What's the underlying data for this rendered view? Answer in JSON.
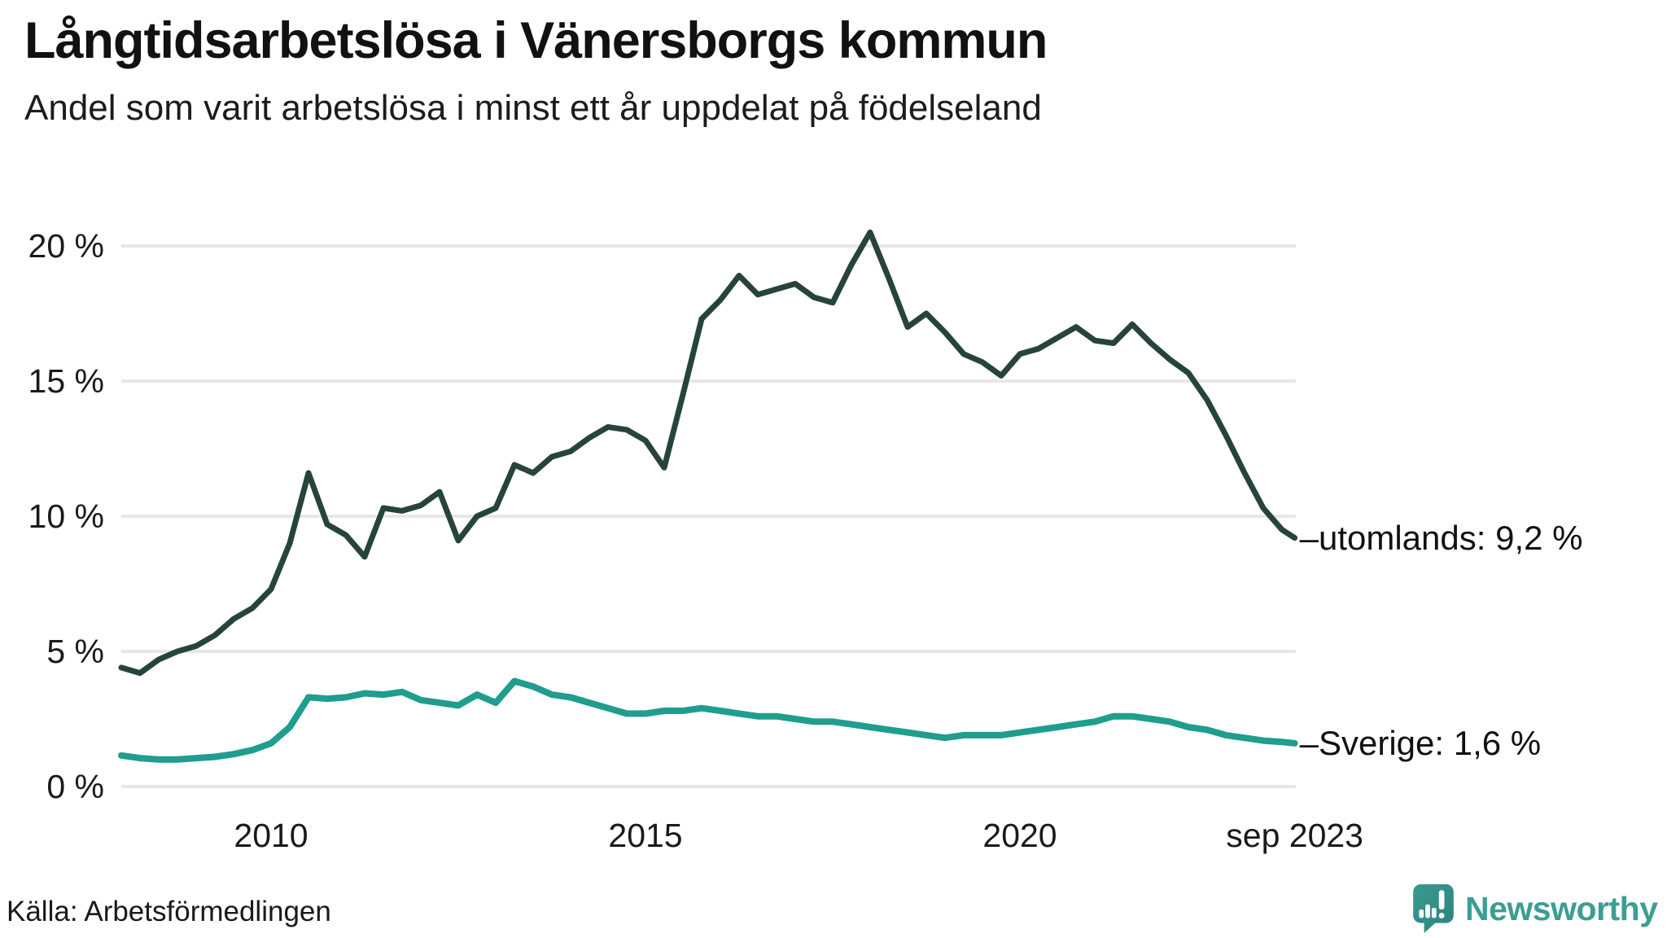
{
  "header": {
    "title": "Långtidsarbetslösa i Vänersborgs kommun",
    "subtitle": "Andel som varit arbetslösa i minst ett år uppdelat på födelseland"
  },
  "chart_data": {
    "type": "line",
    "title": "Långtidsarbetslösa i Vänersborgs kommun",
    "subtitle": "Andel som varit arbetslösa i minst ett år uppdelat på födelseland",
    "xlabel": "",
    "ylabel": "",
    "ylim": [
      0,
      21
    ],
    "xlim": [
      2008,
      2023.67
    ],
    "grid": "horizontal",
    "legend_position": "right-end-labels",
    "x": [
      2008,
      2008.25,
      2008.5,
      2008.75,
      2009,
      2009.25,
      2009.5,
      2009.75,
      2010,
      2010.25,
      2010.5,
      2010.75,
      2011,
      2011.25,
      2011.5,
      2011.75,
      2012,
      2012.25,
      2012.5,
      2012.75,
      2013,
      2013.25,
      2013.5,
      2013.75,
      2014,
      2014.25,
      2014.5,
      2014.75,
      2015,
      2015.25,
      2015.5,
      2015.75,
      2016,
      2016.25,
      2016.5,
      2016.75,
      2017,
      2017.25,
      2017.5,
      2017.75,
      2018,
      2018.25,
      2018.5,
      2018.75,
      2019,
      2019.25,
      2019.5,
      2019.75,
      2020,
      2020.25,
      2020.5,
      2020.75,
      2021,
      2021.25,
      2021.5,
      2021.75,
      2022,
      2022.25,
      2022.5,
      2022.75,
      2023,
      2023.25,
      2023.5,
      2023.67
    ],
    "series": [
      {
        "name": "utomlands",
        "color": "#26443a",
        "stroke_width": 7,
        "end_label": "–utomlands: 9,2 %",
        "last_value": "9,2 %",
        "values": [
          4.4,
          4.2,
          4.7,
          5.0,
          5.2,
          5.6,
          6.2,
          6.6,
          7.3,
          9.0,
          11.6,
          9.7,
          9.3,
          8.5,
          10.3,
          10.2,
          10.4,
          10.9,
          9.1,
          10.0,
          10.3,
          11.9,
          11.6,
          12.2,
          12.4,
          12.9,
          13.3,
          13.2,
          12.8,
          11.8,
          14.5,
          17.3,
          18.0,
          18.9,
          18.2,
          18.4,
          18.6,
          18.1,
          17.9,
          19.3,
          20.5,
          18.8,
          17.0,
          17.5,
          16.8,
          16.0,
          15.7,
          15.2,
          16.0,
          16.2,
          16.6,
          17.0,
          16.5,
          16.4,
          17.1,
          16.4,
          15.8,
          15.3,
          14.3,
          13.0,
          11.6,
          10.3,
          9.5,
          9.2
        ]
      },
      {
        "name": "Sverige",
        "color": "#1f9d8d",
        "stroke_width": 8,
        "end_label": "–Sverige: 1,6 %",
        "last_value": "1,6 %",
        "values": [
          1.15,
          1.05,
          1.0,
          1.0,
          1.05,
          1.1,
          1.2,
          1.35,
          1.6,
          2.2,
          3.3,
          3.25,
          3.3,
          3.45,
          3.4,
          3.5,
          3.2,
          3.1,
          3.0,
          3.4,
          3.1,
          3.9,
          3.7,
          3.4,
          3.3,
          3.1,
          2.9,
          2.7,
          2.7,
          2.8,
          2.8,
          2.9,
          2.8,
          2.7,
          2.6,
          2.6,
          2.5,
          2.4,
          2.4,
          2.3,
          2.2,
          2.1,
          2.0,
          1.9,
          1.8,
          1.9,
          1.9,
          1.9,
          2.0,
          2.1,
          2.2,
          2.3,
          2.4,
          2.6,
          2.6,
          2.5,
          2.4,
          2.2,
          2.1,
          1.9,
          1.8,
          1.7,
          1.65,
          1.6
        ]
      }
    ],
    "yticks": [
      {
        "label": "0 %",
        "value": 0
      },
      {
        "label": "5 %",
        "value": 5
      },
      {
        "label": "10 %",
        "value": 10
      },
      {
        "label": "15 %",
        "value": 15
      },
      {
        "label": "20 %",
        "value": 20
      }
    ],
    "xticks": [
      {
        "label": "2010",
        "x": 2010
      },
      {
        "label": "2015",
        "x": 2015
      },
      {
        "label": "2020",
        "x": 2020
      },
      {
        "label": "sep 2023",
        "x": 2023.67
      }
    ]
  },
  "footer": {
    "source": "Källa: Arbetsförmedlingen",
    "brand": "Newsworthy"
  },
  "colors": {
    "series_utomlands": "#26443a",
    "series_sverige": "#1f9d8d",
    "grid": "#e7e7eb",
    "text": "#1a1a1a",
    "brand_teal": "#3b9e93"
  }
}
